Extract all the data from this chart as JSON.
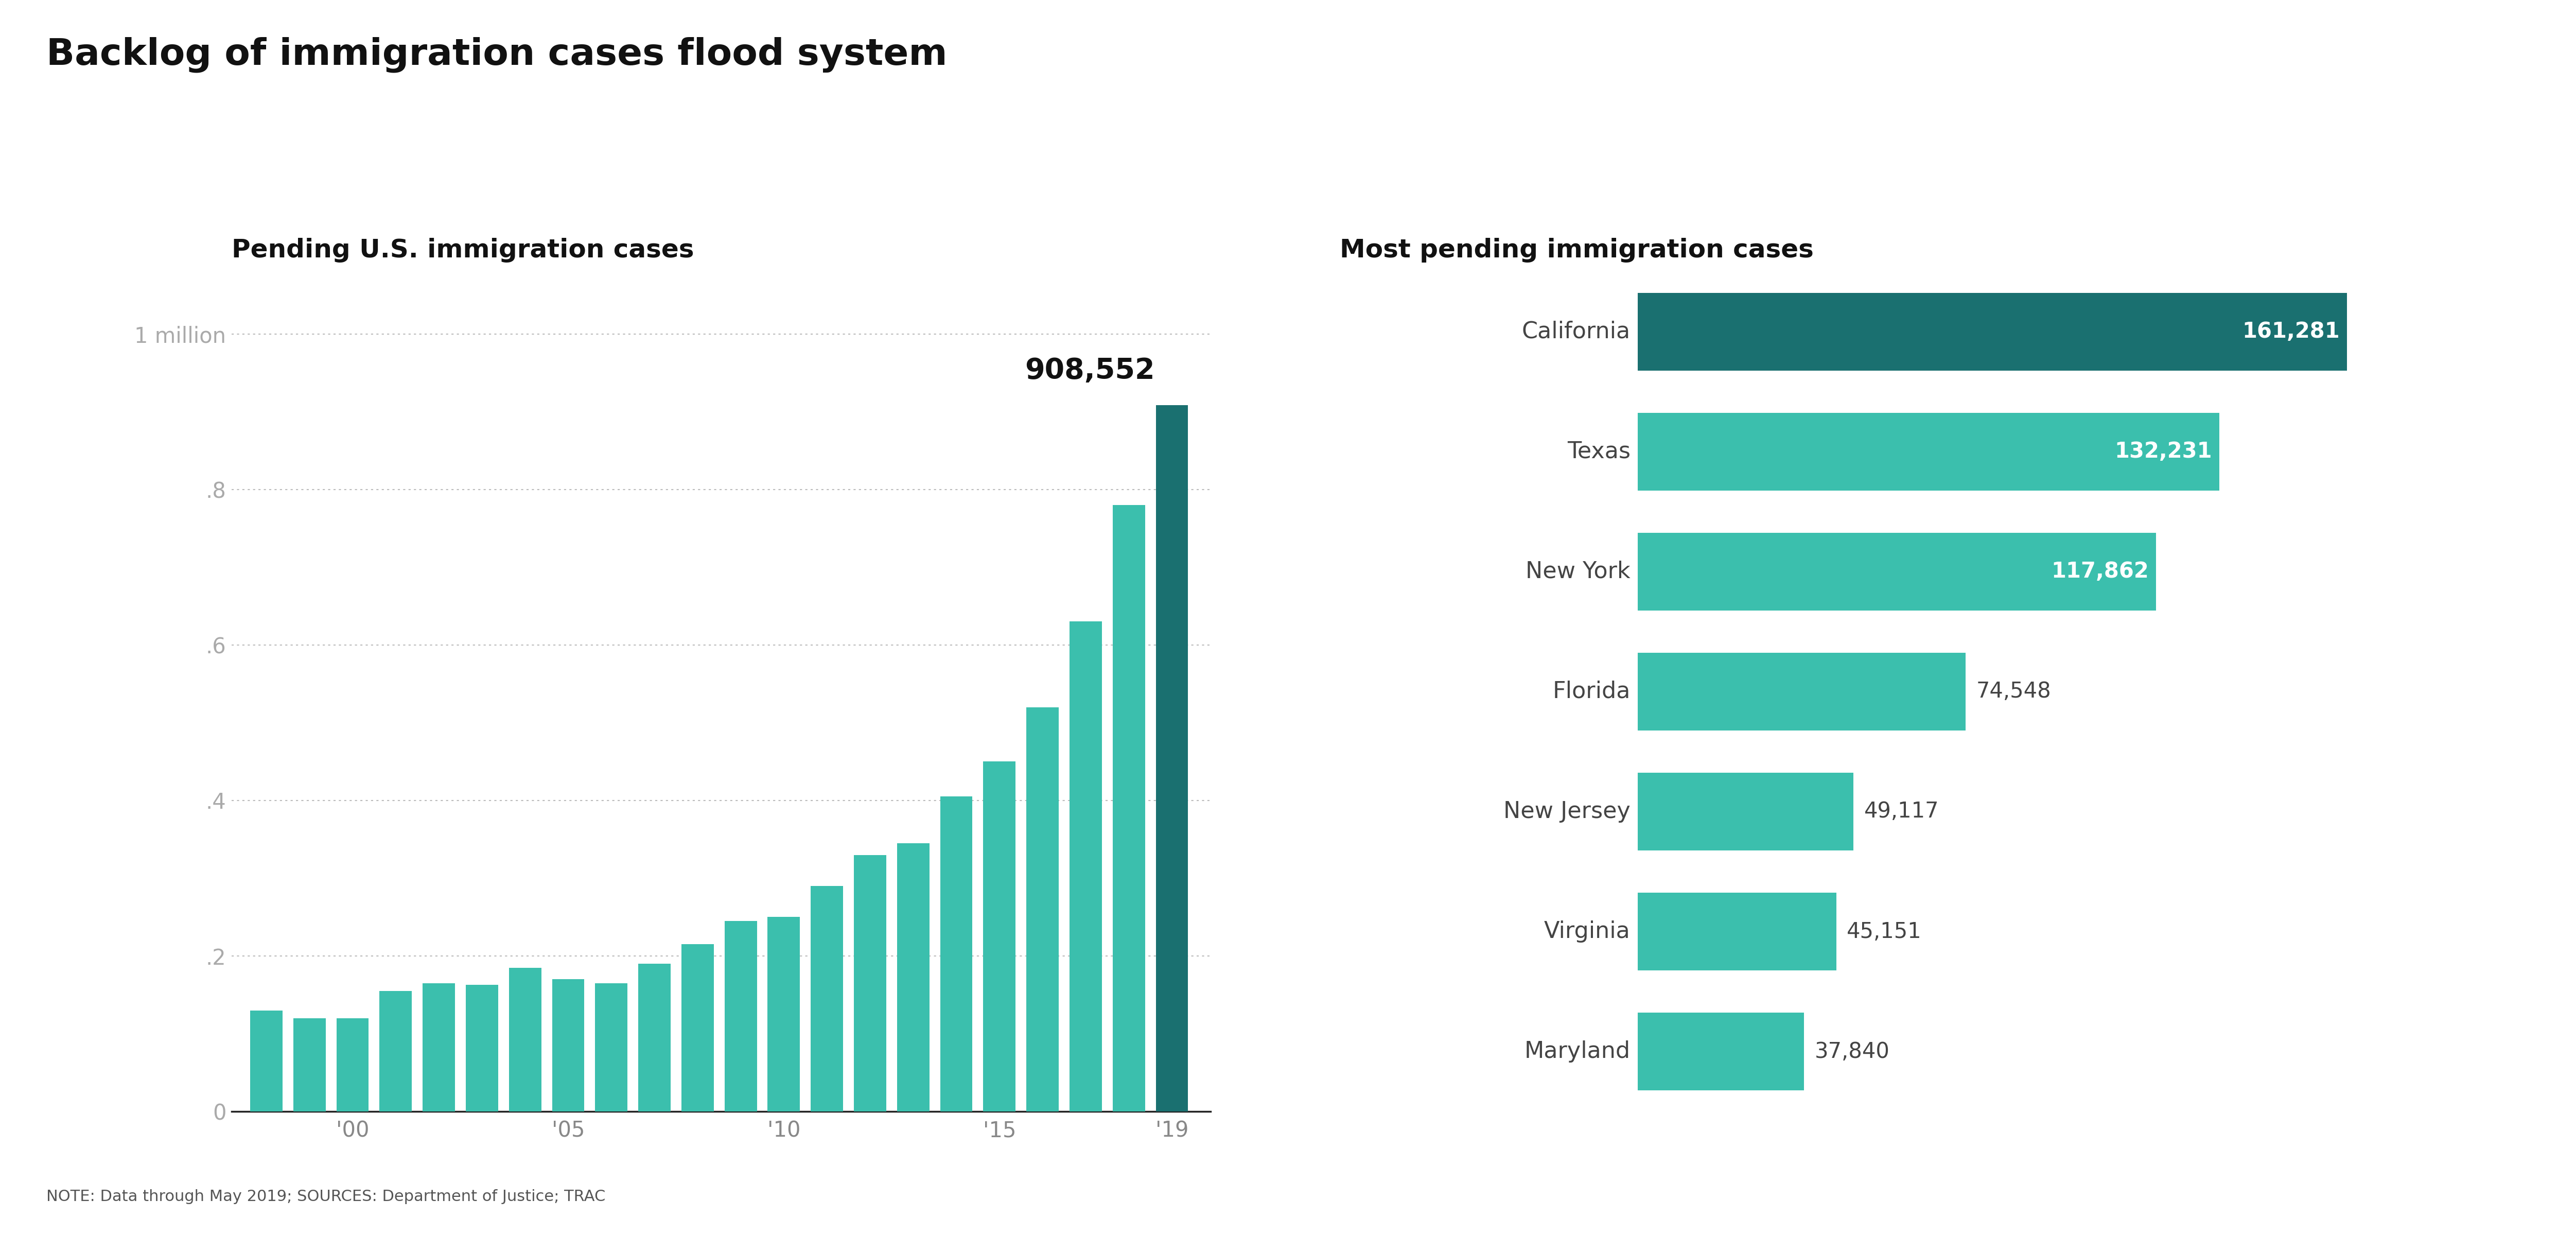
{
  "title": "Backlog of immigration cases flood system",
  "left_subtitle": "Pending U.S. immigration cases",
  "right_subtitle": "Most pending immigration cases",
  "note": "NOTE: Data through May 2019; SOURCES: Department of Justice; TRAC",
  "bar_years": [
    1998,
    1999,
    2000,
    2001,
    2002,
    2003,
    2004,
    2005,
    2006,
    2007,
    2008,
    2009,
    2010,
    2011,
    2012,
    2013,
    2014,
    2015,
    2016,
    2017,
    2018,
    2019
  ],
  "bar_values": [
    0.13,
    0.12,
    0.12,
    0.155,
    0.165,
    0.163,
    0.185,
    0.17,
    0.165,
    0.19,
    0.215,
    0.245,
    0.25,
    0.29,
    0.33,
    0.345,
    0.405,
    0.45,
    0.52,
    0.63,
    0.78,
    0.908552
  ],
  "bar_color": "#3bbfad",
  "last_bar_color": "#1a7070",
  "last_bar_label": "908,552",
  "ylabel_ticks": [
    "0",
    ".2",
    ".4",
    ".6",
    ".8",
    "1 million"
  ],
  "ylabel_values": [
    0,
    0.2,
    0.4,
    0.6,
    0.8,
    1.0
  ],
  "xtick_labels": [
    "'00",
    "'05",
    "'10",
    "'15",
    "'19"
  ],
  "xtick_positions": [
    2000,
    2005,
    2010,
    2015,
    2019
  ],
  "states": [
    "California",
    "Texas",
    "New York",
    "Florida",
    "New Jersey",
    "Virginia",
    "Maryland"
  ],
  "state_values": [
    161281,
    132231,
    117862,
    74548,
    49117,
    45151,
    37840
  ],
  "state_labels": [
    "161,281",
    "132,231",
    "117,862",
    "74,548",
    "49,117",
    "45,151",
    "37,840"
  ],
  "state_bar_colors": [
    "#1a7070",
    "#3bbfad",
    "#3bbfad",
    "#3bbfad",
    "#3bbfad",
    "#3bbfad",
    "#3bbfad"
  ],
  "label_inside": [
    true,
    true,
    true,
    false,
    false,
    false,
    false
  ],
  "background_color": "#ffffff",
  "title_fontsize": 52,
  "subtitle_fontsize": 36,
  "tick_fontsize": 30,
  "note_fontsize": 22,
  "annotation_fontsize": 40,
  "state_name_fontsize": 32,
  "state_label_fontsize": 30
}
